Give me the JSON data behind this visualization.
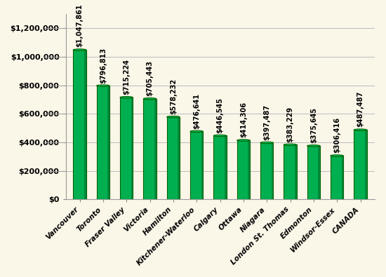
{
  "categories": [
    "Vancouver",
    "Toronto",
    "Fraser Valley",
    "Victoria",
    "Hamilton",
    "Kitchener-Waterloo",
    "Calgary",
    "Ottawa",
    "Niagara",
    "London St. Thomas",
    "Edmonton",
    "Windsor-Essex",
    "CANADA"
  ],
  "values": [
    1047861,
    796813,
    715224,
    705443,
    578232,
    476641,
    446545,
    414306,
    397487,
    383229,
    375645,
    306416,
    487487
  ],
  "labels": [
    "$1,047,861",
    "$796,813",
    "$715,224",
    "$705,443",
    "$578,232",
    "$476,641",
    "$446,545",
    "$414,306",
    "$397,487",
    "$383,229",
    "$375,645",
    "$306,416",
    "$487,487"
  ],
  "bar_color": "#00b050",
  "bar_edge_color": "#006400",
  "background_color": "#faf6e8",
  "wall_color": "#c8bfa0",
  "ylim": [
    0,
    1300000
  ],
  "yticks": [
    0,
    200000,
    400000,
    600000,
    800000,
    1000000,
    1200000
  ],
  "ytick_labels": [
    "$0",
    "$200,000",
    "$400,000",
    "$600,000",
    "$800,000",
    "$1,000,000",
    "$1,200,000"
  ],
  "grid_color": "#bbbbbb",
  "label_fontsize": 7.0,
  "tick_fontsize": 8.0,
  "xtick_fontsize": 7.5
}
